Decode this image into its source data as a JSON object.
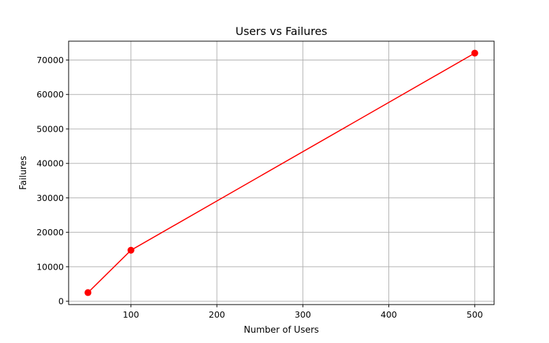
{
  "chart_data": {
    "type": "line",
    "title": "Users vs Failures",
    "xlabel": "Number of Users",
    "ylabel": "Failures",
    "x": [
      50,
      100,
      500
    ],
    "series": [
      {
        "values": [
          2500,
          14800,
          72000
        ],
        "color": "#ff0000",
        "marker": "circle"
      }
    ],
    "xlim": [
      27.5,
      522.5
    ],
    "ylim": [
      -975,
      75475
    ],
    "xticks": [
      100,
      200,
      300,
      400,
      500
    ],
    "yticks": [
      0,
      10000,
      20000,
      30000,
      40000,
      50000,
      60000,
      70000
    ],
    "xtick_labels": [
      "100",
      "200",
      "300",
      "400",
      "500"
    ],
    "ytick_labels": [
      "0",
      "10000",
      "20000",
      "30000",
      "40000",
      "50000",
      "60000",
      "70000"
    ],
    "grid": true,
    "legend": false
  }
}
